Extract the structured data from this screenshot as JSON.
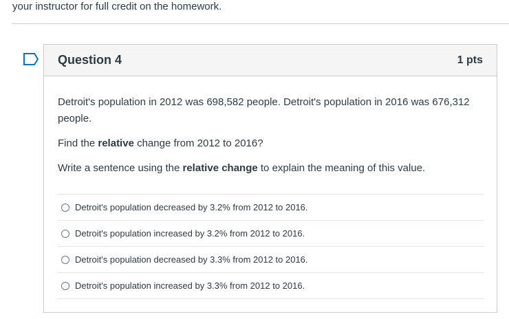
{
  "page": {
    "instructions_tail": "your instructor for full credit on the homework."
  },
  "question": {
    "title": "Question 4",
    "points": "1 pts",
    "p1": "Detroit's population in 2012 was 698,582 people.  Detroit's population in 2016 was 676,312 people.",
    "p2_before": "Find the ",
    "p2_bold": "relative",
    "p2_after": " change from 2012 to 2016?",
    "p3_before": "Write a sentence using the ",
    "p3_bold": "relative change",
    "p3_after": " to explain the meaning of this value.",
    "answers": [
      "Detroit's population decreased by 3.2% from 2012 to 2016.",
      "Detroit's population increased by 3.2% from 2012 to 2016.",
      "Detroit's population decreased by 3.3% from 2012 to 2016.",
      "Detroit's population increased by 3.3% from 2012 to 2016."
    ]
  },
  "colors": {
    "flag": "#0374b5",
    "border": "#c7cdd1",
    "text": "#2d3b45"
  }
}
